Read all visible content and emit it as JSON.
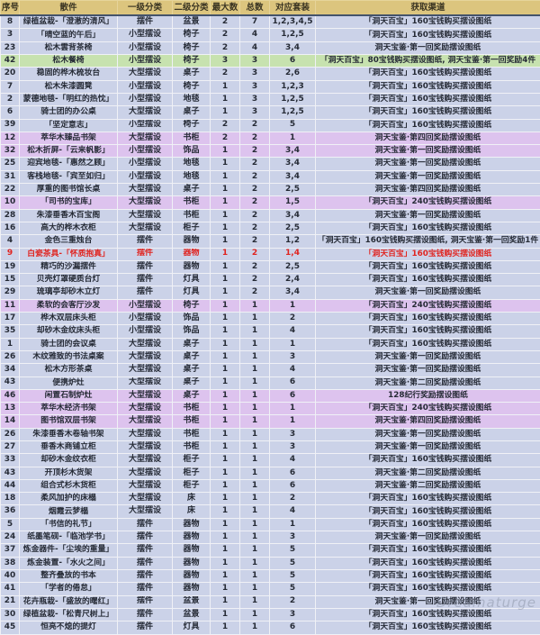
{
  "colors": {
    "header_bg": "#dcc57e",
    "row_default_bg": "#cbd2e8",
    "row_green_bg": "#c7e2af",
    "row_purple_bg": "#ddc3ee",
    "red_text": "#e02420",
    "gridline": "#f0f1f6"
  },
  "watermark": "Dreamaturge",
  "table": {
    "headers": [
      "序号",
      "散件",
      "一级分类",
      "二级分类",
      "最大数",
      "总数",
      "对应套装",
      "获取渠道"
    ],
    "rows": [
      {
        "no": "8",
        "name": "绿植盆栽-「澄澈的清风」",
        "cat1": "摆件",
        "cat2": "盆景",
        "max": "2",
        "total": "7",
        "sets": "1,2,3,4,5",
        "source": "「洞天百宝」160宝钱购买摆设图纸",
        "style": "blue"
      },
      {
        "no": "3",
        "name": "「晴空蓝的午后」",
        "cat1": "小型摆设",
        "cat2": "椅子",
        "max": "2",
        "total": "4",
        "sets": "1,2,5",
        "source": "「洞天百宝」160宝钱购买摆设图纸",
        "style": "blue"
      },
      {
        "no": "23",
        "name": "松木雲背茶椅",
        "cat1": "小型摆设",
        "cat2": "椅子",
        "max": "2",
        "total": "4",
        "sets": "3,4",
        "source": "洞天宝鉴·第一回奖励摆设图纸",
        "style": "blue"
      },
      {
        "no": "42",
        "name": "松木餐椅",
        "cat1": "小型摆设",
        "cat2": "椅子",
        "max": "3",
        "total": "3",
        "sets": "6",
        "source": "「洞天百宝」80宝钱购买摆设图纸, 洞天宝鉴·第一回奖励4件",
        "style": "green"
      },
      {
        "no": "20",
        "name": "稳固的桦木梳妆台",
        "cat1": "大型摆设",
        "cat2": "桌子",
        "max": "2",
        "total": "3",
        "sets": "2,6",
        "source": "「洞天百宝」160宝钱购买摆设图纸",
        "style": "blue"
      },
      {
        "no": "7",
        "name": "松木朱漆圆凳",
        "cat1": "小型摆设",
        "cat2": "椅子",
        "max": "1",
        "total": "3",
        "sets": "1,2,3",
        "source": "「洞天百宝」160宝钱购买摆设图纸",
        "style": "blue"
      },
      {
        "no": "2",
        "name": "蒙德地毯-「明红的热忱」",
        "cat1": "小型摆设",
        "cat2": "地毯",
        "max": "1",
        "total": "3",
        "sets": "1,2,5",
        "source": "「洞天百宝」160宝钱购买摆设图纸",
        "style": "blue"
      },
      {
        "no": "6",
        "name": "骑士团的办公桌",
        "cat1": "大型摆设",
        "cat2": "桌子",
        "max": "1",
        "total": "3",
        "sets": "1,2,5",
        "source": "「洞天百宝」160宝钱购买摆设图纸",
        "style": "blue"
      },
      {
        "no": "39",
        "name": "「坚定意志」",
        "cat1": "小型摆设",
        "cat2": "椅子",
        "max": "2",
        "total": "2",
        "sets": "5",
        "source": "「洞天百宝」160宝钱购买摆设图纸",
        "style": "blue"
      },
      {
        "no": "12",
        "name": "萃华木臻品书架",
        "cat1": "大型摆设",
        "cat2": "书柜",
        "max": "2",
        "total": "2",
        "sets": "1",
        "source": "洞天宝鉴·第四回奖励摆设图纸",
        "style": "purple"
      },
      {
        "no": "32",
        "name": "松木折屏-「云来帆影」",
        "cat1": "小型摆设",
        "cat2": "饰品",
        "max": "1",
        "total": "2",
        "sets": "3,4",
        "source": "洞天宝鉴·第一回奖励摆设图纸",
        "style": "purple"
      },
      {
        "no": "25",
        "name": "迎宾地毯-「惠然之顾」",
        "cat1": "小型摆设",
        "cat2": "地毯",
        "max": "1",
        "total": "2",
        "sets": "3,4",
        "source": "洞天宝鉴·第一回奖励摆设图纸",
        "style": "blue"
      },
      {
        "no": "31",
        "name": "客栈地毯-「宾至如归」",
        "cat1": "小型摆设",
        "cat2": "地毯",
        "max": "1",
        "total": "2",
        "sets": "3,4",
        "source": "洞天宝鉴·第一回奖励摆设图纸",
        "style": "blue"
      },
      {
        "no": "22",
        "name": "厚重的图书馆长桌",
        "cat1": "大型摆设",
        "cat2": "桌子",
        "max": "1",
        "total": "2",
        "sets": "2,5",
        "source": "洞天宝鉴·第四回奖励摆设图纸",
        "style": "blue"
      },
      {
        "no": "10",
        "name": "「司书的宝库」",
        "cat1": "大型摆设",
        "cat2": "书柜",
        "max": "1",
        "total": "2",
        "sets": "1,5",
        "source": "「洞天百宝」240宝钱购买摆设图纸",
        "style": "purple"
      },
      {
        "no": "28",
        "name": "朱漆垂香木百宝阁",
        "cat1": "大型摆设",
        "cat2": "书柜",
        "max": "1",
        "total": "2",
        "sets": "3,4",
        "source": "洞天宝鉴·第一回奖励摆设图纸",
        "style": "blue"
      },
      {
        "no": "16",
        "name": "高大的桦木衣柜",
        "cat1": "大型摆设",
        "cat2": "柜子",
        "max": "1",
        "total": "2",
        "sets": "2,5",
        "source": "「洞天百宝」160宝钱购买摆设图纸",
        "style": "blue"
      },
      {
        "no": "4",
        "name": "金色三重烛台",
        "cat1": "摆件",
        "cat2": "器物",
        "max": "1",
        "total": "2",
        "sets": "1,2",
        "source": "「洞天百宝」160宝钱购买摆设图纸, 洞天宝鉴·第一回奖励1件",
        "style": "blue"
      },
      {
        "no": "9",
        "name": "白瓷茶具-「怀质抱真」",
        "cat1": "摆件",
        "cat2": "器物",
        "max": "1",
        "total": "2",
        "sets": "1,4",
        "source": "「洞天百宝」160宝钱购买摆设图纸",
        "style": "red"
      },
      {
        "no": "19",
        "name": "精巧的沙漏摆件",
        "cat1": "摆件",
        "cat2": "器物",
        "max": "1",
        "total": "2",
        "sets": "2,5",
        "source": "「洞天百宝」160宝钱购买摆设图纸",
        "style": "blue"
      },
      {
        "no": "15",
        "name": "贝壳灯罩硬质台灯",
        "cat1": "摆件",
        "cat2": "灯具",
        "max": "1",
        "total": "2",
        "sets": "2,4",
        "source": "「洞天百宝」160宝钱购买摆设图纸",
        "style": "blue"
      },
      {
        "no": "29",
        "name": "琉璃亭却砂木立灯",
        "cat1": "摆件",
        "cat2": "灯具",
        "max": "1",
        "total": "2",
        "sets": "3,4",
        "source": "洞天宝鉴·第一回奖励摆设图纸",
        "style": "blue"
      },
      {
        "no": "11",
        "name": "柔软的会客厅沙发",
        "cat1": "小型摆设",
        "cat2": "椅子",
        "max": "1",
        "total": "1",
        "sets": "1",
        "source": "「洞天百宝」240宝钱购买摆设图纸",
        "style": "purple"
      },
      {
        "no": "17",
        "name": "桦木双层床头柜",
        "cat1": "小型摆设",
        "cat2": "饰品",
        "max": "1",
        "total": "1",
        "sets": "2",
        "source": "「洞天百宝」160宝钱购买摆设图纸",
        "style": "blue"
      },
      {
        "no": "35",
        "name": "却砂木金纹床头柜",
        "cat1": "小型摆设",
        "cat2": "饰品",
        "max": "1",
        "total": "1",
        "sets": "4",
        "source": "「洞天百宝」160宝钱购买摆设图纸",
        "style": "blue"
      },
      {
        "no": "1",
        "name": "骑士团的会议桌",
        "cat1": "大型摆设",
        "cat2": "桌子",
        "max": "1",
        "total": "1",
        "sets": "1",
        "source": "「洞天百宝」160宝钱购买摆设图纸",
        "style": "blue"
      },
      {
        "no": "26",
        "name": "木纹雅致的书法桌案",
        "cat1": "大型摆设",
        "cat2": "桌子",
        "max": "1",
        "total": "1",
        "sets": "3",
        "source": "洞天宝鉴·第一回奖励摆设图纸",
        "style": "blue"
      },
      {
        "no": "34",
        "name": "松木方形茶桌",
        "cat1": "大型摆设",
        "cat2": "桌子",
        "max": "1",
        "total": "1",
        "sets": "4",
        "source": "洞天宝鉴·第一回奖励摆设图纸",
        "style": "blue"
      },
      {
        "no": "43",
        "name": "便携炉灶",
        "cat1": "大型摆设",
        "cat2": "桌子",
        "max": "1",
        "total": "1",
        "sets": "6",
        "source": "洞天宝鉴·第二回奖励摆设图纸",
        "style": "blue"
      },
      {
        "no": "46",
        "name": "闲置石制炉灶",
        "cat1": "大型摆设",
        "cat2": "桌子",
        "max": "1",
        "total": "1",
        "sets": "6",
        "source": "128纪行奖励摆设图纸",
        "style": "purple"
      },
      {
        "no": "13",
        "name": "萃华木经济书架",
        "cat1": "大型摆设",
        "cat2": "书柜",
        "max": "1",
        "total": "1",
        "sets": "1",
        "source": "「洞天百宝」240宝钱购买摆设图纸",
        "style": "purple"
      },
      {
        "no": "14",
        "name": "图书馆双层书架",
        "cat1": "大型摆设",
        "cat2": "书柜",
        "max": "1",
        "total": "1",
        "sets": "1",
        "source": "洞天宝鉴·第四回奖励摆设图纸",
        "style": "purple"
      },
      {
        "no": "26",
        "name": "朱漆垂香木卷轴书架",
        "cat1": "大型摆设",
        "cat2": "书柜",
        "max": "1",
        "total": "1",
        "sets": "3",
        "source": "洞天宝鉴·第一回奖励摆设图纸",
        "style": "blue"
      },
      {
        "no": "27",
        "name": "垂香木商铺立柜",
        "cat1": "大型摆设",
        "cat2": "书柜",
        "max": "1",
        "total": "1",
        "sets": "3",
        "source": "洞天宝鉴·第一回奖励摆设图纸",
        "style": "blue"
      },
      {
        "no": "33",
        "name": "却砂木金纹衣柜",
        "cat1": "大型摆设",
        "cat2": "柜子",
        "max": "1",
        "total": "1",
        "sets": "4",
        "source": "「洞天百宝」160宝钱购买摆设图纸",
        "style": "blue"
      },
      {
        "no": "43",
        "name": "开顶杉木货架",
        "cat1": "大型摆设",
        "cat2": "柜子",
        "max": "1",
        "total": "1",
        "sets": "6",
        "source": "洞天宝鉴·第二回奖励摆设图纸",
        "style": "blue"
      },
      {
        "no": "44",
        "name": "组合式杉木货柜",
        "cat1": "大型摆设",
        "cat2": "柜子",
        "max": "1",
        "total": "1",
        "sets": "6",
        "source": "洞天宝鉴·第二回奖励摆设图纸",
        "style": "blue"
      },
      {
        "no": "18",
        "name": "柔风加护的床榻",
        "cat1": "大型摆设",
        "cat2": "床",
        "max": "1",
        "total": "1",
        "sets": "2",
        "source": "「洞天百宝」160宝钱购买摆设图纸",
        "style": "blue"
      },
      {
        "no": "36",
        "name": "烟霞云梦榻",
        "cat1": "大型摆设",
        "cat2": "床",
        "max": "1",
        "total": "1",
        "sets": "4",
        "source": "「洞天百宝」160宝钱购买摆设图纸",
        "style": "blue"
      },
      {
        "no": "5",
        "name": "「书信的礼节」",
        "cat1": "摆件",
        "cat2": "器物",
        "max": "1",
        "total": "1",
        "sets": "1",
        "source": "「洞天百宝」160宝钱购买摆设图纸",
        "style": "blue"
      },
      {
        "no": "24",
        "name": "纸墨笔砚-「临池学书」",
        "cat1": "摆件",
        "cat2": "器物",
        "max": "1",
        "total": "1",
        "sets": "3",
        "source": "洞天宝鉴·第一回奖励摆设图纸",
        "style": "blue"
      },
      {
        "no": "37",
        "name": "炼金器件-「尘埃的重量」",
        "cat1": "摆件",
        "cat2": "器物",
        "max": "1",
        "total": "1",
        "sets": "5",
        "source": "「洞天百宝」160宝钱购买摆设图纸",
        "style": "blue"
      },
      {
        "no": "38",
        "name": "炼金装置-「水火之间」",
        "cat1": "摆件",
        "cat2": "器物",
        "max": "1",
        "total": "1",
        "sets": "5",
        "source": "「洞天百宝」160宝钱购买摆设图纸",
        "style": "blue"
      },
      {
        "no": "40",
        "name": "整齐叠放的书本",
        "cat1": "摆件",
        "cat2": "器物",
        "max": "1",
        "total": "1",
        "sets": "5",
        "source": "「洞天百宝」160宝钱购买摆设图纸",
        "style": "blue"
      },
      {
        "no": "41",
        "name": "「学者的倦怠」",
        "cat1": "摆件",
        "cat2": "器物",
        "max": "1",
        "total": "1",
        "sets": "5",
        "source": "「洞天百宝」160宝钱购买摆设图纸",
        "style": "blue"
      },
      {
        "no": "21",
        "name": "花卉瓶栽-「盛放的曙红」",
        "cat1": "摆件",
        "cat2": "盆景",
        "max": "1",
        "total": "1",
        "sets": "2",
        "source": "洞天宝鉴·第一回奖励摆设图纸",
        "style": "blue"
      },
      {
        "no": "30",
        "name": "绿植盆栽-「松青尺树上」",
        "cat1": "摆件",
        "cat2": "盆景",
        "max": "1",
        "total": "1",
        "sets": "3",
        "source": "「洞天百宝」160宝钱购买摆设图纸",
        "style": "blue"
      },
      {
        "no": "45",
        "name": "恒亮不熄的提灯",
        "cat1": "摆件",
        "cat2": "灯具",
        "max": "1",
        "total": "1",
        "sets": "6",
        "source": "「洞天百宝」160宝钱购买摆设图纸",
        "style": "blue"
      }
    ]
  }
}
